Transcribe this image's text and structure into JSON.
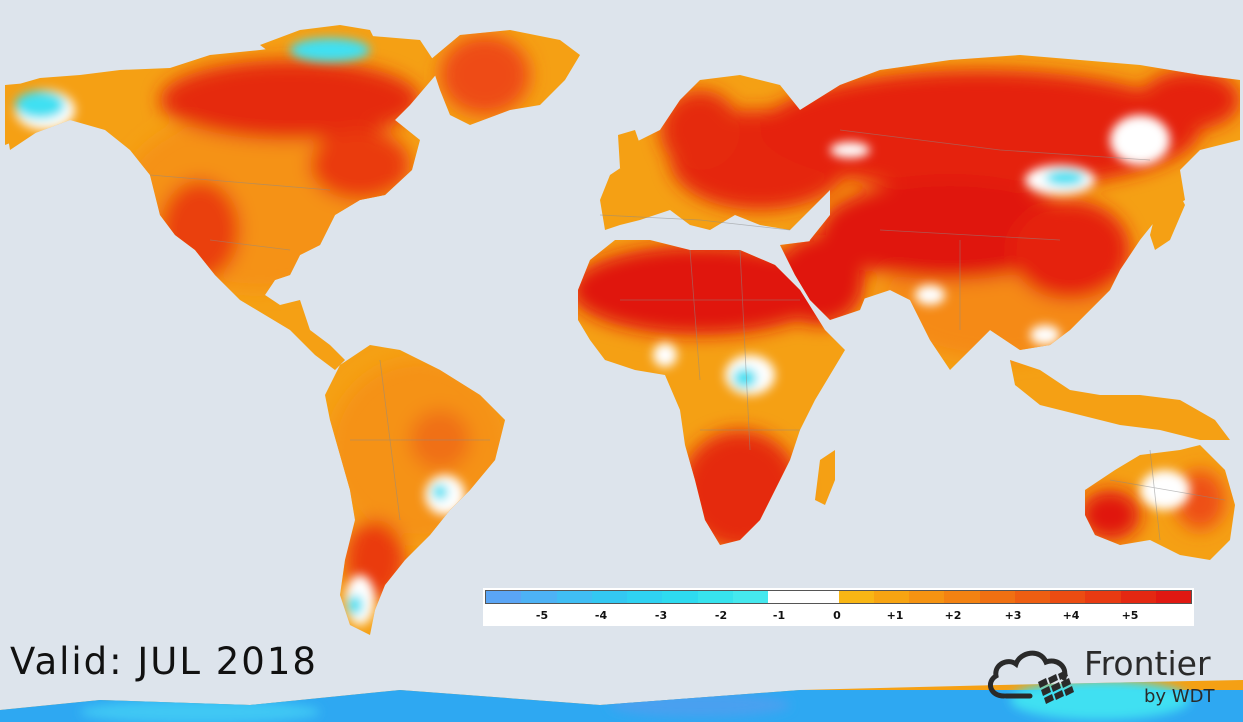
{
  "map": {
    "background_color": "#dde4ec",
    "colors": {
      "very_hot": "#e01010",
      "hot": "#ef3c10",
      "warm": "#f56a10",
      "mild": "#f59214",
      "slight": "#f7b31a",
      "neutral": "#ffffff",
      "cool": "#3fe0f2",
      "cold": "#27b6f0"
    }
  },
  "legend": {
    "swatches": [
      "#5aa5f5",
      "#4db2f5",
      "#40bef4",
      "#33c8f2",
      "#2fd2f2",
      "#2edbf0",
      "#37e3ee",
      "#45e8ee",
      "#ffffff",
      "#ffffff",
      "#f8b614",
      "#f7a412",
      "#f59312",
      "#f38212",
      "#f07012",
      "#ee5e12",
      "#eb4c12",
      "#e83a12",
      "#e42812",
      "#e01812"
    ],
    "ticks": [
      "-5",
      "-4",
      "-3",
      "-2",
      "-1",
      "0",
      "+1",
      "+2",
      "+3",
      "+4",
      "+5"
    ]
  },
  "valid_label": "Valid:  JUL  2018",
  "brand": {
    "name": "Frontier",
    "sub": "by WDT",
    "logo_icon": "cloud-grid-icon"
  }
}
